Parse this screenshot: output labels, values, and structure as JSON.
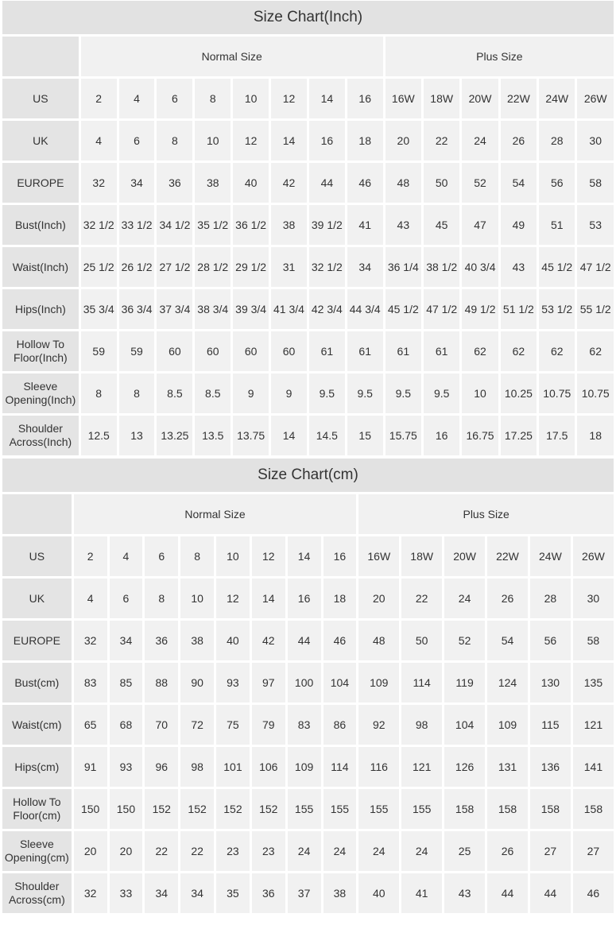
{
  "tables": [
    {
      "title": "Size Chart(Inch)",
      "groups": {
        "normal": "Normal Size",
        "plus": "Plus Size"
      },
      "rows": [
        {
          "label": "US",
          "values": [
            "2",
            "4",
            "6",
            "8",
            "10",
            "12",
            "14",
            "16",
            "16W",
            "18W",
            "20W",
            "22W",
            "24W",
            "26W"
          ]
        },
        {
          "label": "UK",
          "values": [
            "4",
            "6",
            "8",
            "10",
            "12",
            "14",
            "16",
            "18",
            "20",
            "22",
            "24",
            "26",
            "28",
            "30"
          ]
        },
        {
          "label": "EUROPE",
          "values": [
            "32",
            "34",
            "36",
            "38",
            "40",
            "42",
            "44",
            "46",
            "48",
            "50",
            "52",
            "54",
            "56",
            "58"
          ]
        },
        {
          "label": "Bust(Inch)",
          "values": [
            "32 1/2",
            "33 1/2",
            "34 1/2",
            "35 1/2",
            "36 1/2",
            "38",
            "39 1/2",
            "41",
            "43",
            "45",
            "47",
            "49",
            "51",
            "53"
          ]
        },
        {
          "label": "Waist(Inch)",
          "values": [
            "25 1/2",
            "26 1/2",
            "27 1/2",
            "28 1/2",
            "29 1/2",
            "31",
            "32 1/2",
            "34",
            "36 1/4",
            "38 1/2",
            "40 3/4",
            "43",
            "45 1/2",
            "47 1/2"
          ]
        },
        {
          "label": "Hips(Inch)",
          "values": [
            "35 3/4",
            "36 3/4",
            "37 3/4",
            "38 3/4",
            "39 3/4",
            "41 3/4",
            "42 3/4",
            "44 3/4",
            "45 1/2",
            "47 1/2",
            "49 1/2",
            "51 1/2",
            "53 1/2",
            "55 1/2"
          ]
        },
        {
          "label": "Hollow To Floor(Inch)",
          "values": [
            "59",
            "59",
            "60",
            "60",
            "60",
            "60",
            "61",
            "61",
            "61",
            "61",
            "62",
            "62",
            "62",
            "62"
          ]
        },
        {
          "label": "Sleeve Opening(Inch)",
          "values": [
            "8",
            "8",
            "8.5",
            "8.5",
            "9",
            "9",
            "9.5",
            "9.5",
            "9.5",
            "9.5",
            "10",
            "10.25",
            "10.75",
            "10.75"
          ]
        },
        {
          "label": "Shoulder Across(Inch)",
          "values": [
            "12.5",
            "13",
            "13.25",
            "13.5",
            "13.75",
            "14",
            "14.5",
            "15",
            "15.75",
            "16",
            "16.75",
            "17.25",
            "17.5",
            "18"
          ]
        }
      ]
    },
    {
      "title": "Size Chart(cm)",
      "groups": {
        "normal": "Normal Size",
        "plus": "Plus Size"
      },
      "rows": [
        {
          "label": "US",
          "values": [
            "2",
            "4",
            "6",
            "8",
            "10",
            "12",
            "14",
            "16",
            "16W",
            "18W",
            "20W",
            "22W",
            "24W",
            "26W"
          ]
        },
        {
          "label": "UK",
          "values": [
            "4",
            "6",
            "8",
            "10",
            "12",
            "14",
            "16",
            "18",
            "20",
            "22",
            "24",
            "26",
            "28",
            "30"
          ]
        },
        {
          "label": "EUROPE",
          "values": [
            "32",
            "34",
            "36",
            "38",
            "40",
            "42",
            "44",
            "46",
            "48",
            "50",
            "52",
            "54",
            "56",
            "58"
          ]
        },
        {
          "label": "Bust(cm)",
          "values": [
            "83",
            "85",
            "88",
            "90",
            "93",
            "97",
            "100",
            "104",
            "109",
            "114",
            "119",
            "124",
            "130",
            "135"
          ]
        },
        {
          "label": "Waist(cm)",
          "values": [
            "65",
            "68",
            "70",
            "72",
            "75",
            "79",
            "83",
            "86",
            "92",
            "98",
            "104",
            "109",
            "115",
            "121"
          ]
        },
        {
          "label": "Hips(cm)",
          "values": [
            "91",
            "93",
            "96",
            "98",
            "101",
            "106",
            "109",
            "114",
            "116",
            "121",
            "126",
            "131",
            "136",
            "141"
          ]
        },
        {
          "label": "Hollow To Floor(cm)",
          "values": [
            "150",
            "150",
            "152",
            "152",
            "152",
            "152",
            "155",
            "155",
            "155",
            "155",
            "158",
            "158",
            "158",
            "158"
          ]
        },
        {
          "label": "Sleeve Opening(cm)",
          "values": [
            "20",
            "20",
            "22",
            "22",
            "23",
            "23",
            "24",
            "24",
            "24",
            "24",
            "25",
            "26",
            "27",
            "27"
          ]
        },
        {
          "label": "Shoulder Across(cm)",
          "values": [
            "32",
            "33",
            "34",
            "34",
            "35",
            "36",
            "37",
            "38",
            "40",
            "41",
            "43",
            "44",
            "44",
            "46"
          ]
        }
      ]
    }
  ]
}
